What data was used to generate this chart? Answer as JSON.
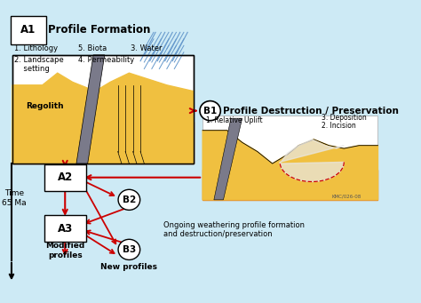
{
  "bg_color": "#cdeaf5",
  "title_A1": "Profile Formation",
  "label_A1": "A1",
  "title_B1": "Profile Destruction / Preservation",
  "label_B1": "B1",
  "label_A2": "A2",
  "label_A3": "A3",
  "label_B2": "B2",
  "label_B3": "B3",
  "text_lithology": "1. Lithology",
  "text_landscape": "2. Landscape\n    setting",
  "text_biota": "5. Biota",
  "text_water": "3. Water",
  "text_permeability": "4. Permeability",
  "text_regolith": "Regolith",
  "text_relative_uplift": "1. Relative Uplift",
  "text_deposition": "3. Deposition",
  "text_incision": "2. Incision",
  "text_time": "Time\n65 Ma",
  "text_modified": "Modified\nprofiles",
  "text_new": "New profiles",
  "text_ongoing": "Ongoing weathering profile formation\nand destruction/preservation",
  "text_kmco": "KMC/026-08",
  "arrow_red": "#cc0000",
  "arrow_black": "#000000",
  "box_color": "#ffffff",
  "regolith_yellow": "#f0c040",
  "orange_color": "#e07820",
  "rock_color": "#7a7a8a",
  "water_color": "#6699cc"
}
